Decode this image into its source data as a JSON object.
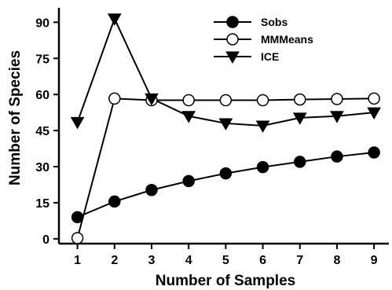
{
  "chart_data": {
    "type": "line",
    "title": "",
    "xlabel": "Number of Samples",
    "ylabel": "Number of Species",
    "x": [
      1,
      2,
      3,
      4,
      5,
      6,
      7,
      8,
      9
    ],
    "xlim": [
      0.5,
      9.4
    ],
    "ylim": [
      -2,
      96
    ],
    "x_ticks": [
      "1",
      "2",
      "3",
      "4",
      "5",
      "6",
      "7",
      "8",
      "9"
    ],
    "y_ticks": [
      "0",
      "15",
      "30",
      "45",
      "60",
      "75",
      "90"
    ],
    "grid": false,
    "legend_position": "top-right",
    "series": [
      {
        "name": "Sobs",
        "marker": "filled-circle",
        "values": [
          9,
          15.5,
          20.3,
          24,
          27.2,
          29.8,
          32,
          34.2,
          35.9
        ]
      },
      {
        "name": "MMMeans",
        "marker": "open-circle",
        "values": [
          0.3,
          58.3,
          57.6,
          57.6,
          57.6,
          57.6,
          57.9,
          58.1,
          58.3
        ]
      },
      {
        "name": "ICE",
        "marker": "filled-triangle-down",
        "values": [
          48.5,
          91.5,
          58.3,
          51,
          48,
          47,
          50.3,
          51,
          52.5
        ]
      }
    ]
  }
}
